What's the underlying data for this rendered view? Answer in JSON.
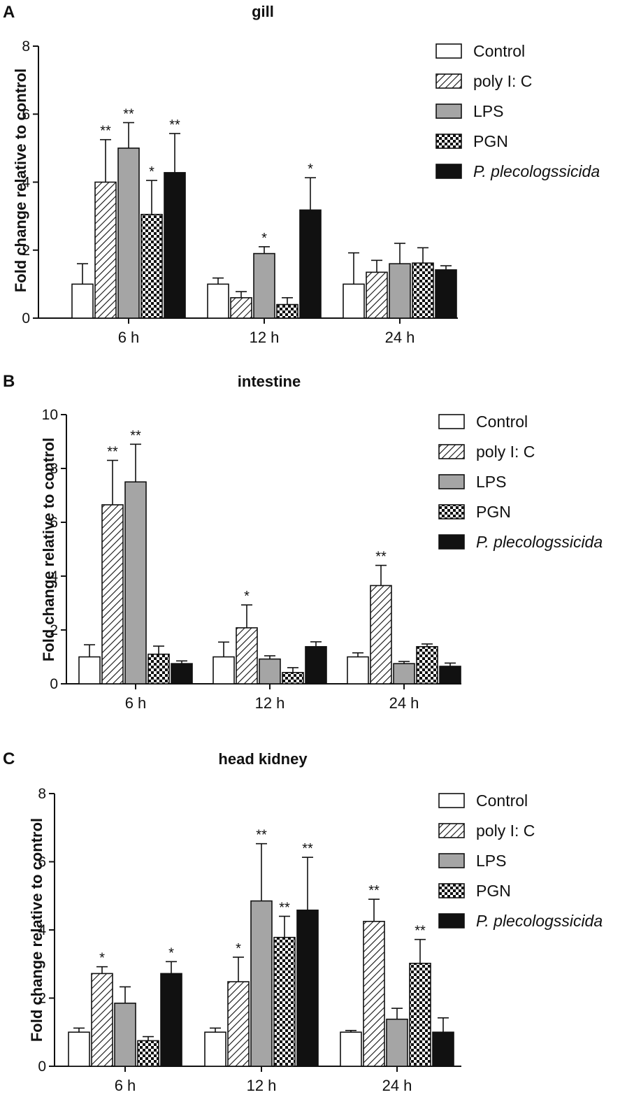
{
  "legend": {
    "entries": [
      {
        "name": "Control",
        "pattern": "white",
        "italic": false
      },
      {
        "name": "poly I: C",
        "pattern": "hatch",
        "italic": false
      },
      {
        "name": "LPS",
        "pattern": "gray",
        "italic": false
      },
      {
        "name": "PGN",
        "pattern": "checker",
        "italic": false
      },
      {
        "name": "P. plecologssicida",
        "pattern": "black",
        "italic": true
      }
    ]
  },
  "colors": {
    "gray": "#a5a5a5",
    "black": "#111111",
    "white": "#ffffff"
  },
  "chart_data": [
    {
      "letter": "A",
      "title": "gill",
      "type": "bar",
      "ylabel": "Fold change relative to control",
      "ylim": [
        0,
        8
      ],
      "yticks": [
        0,
        2,
        4,
        6,
        8
      ],
      "categories": [
        "6 h",
        "12 h",
        "24 h"
      ],
      "series": [
        {
          "name": "Control",
          "values": [
            1.0,
            1.0,
            1.0
          ],
          "errors": [
            0.6,
            0.18,
            0.92
          ],
          "stars": [
            "",
            "",
            ""
          ]
        },
        {
          "name": "poly I: C",
          "values": [
            4.0,
            0.6,
            1.35
          ],
          "errors": [
            1.25,
            0.18,
            0.35
          ],
          "stars": [
            "**",
            "",
            ""
          ]
        },
        {
          "name": "LPS",
          "values": [
            5.0,
            1.9,
            1.6
          ],
          "errors": [
            0.75,
            0.2,
            0.6
          ],
          "stars": [
            "**",
            "*",
            ""
          ]
        },
        {
          "name": "PGN",
          "values": [
            3.05,
            0.4,
            1.62
          ],
          "errors": [
            1.0,
            0.2,
            0.45
          ],
          "stars": [
            "*",
            "",
            ""
          ]
        },
        {
          "name": "P. plecologssicida",
          "values": [
            4.28,
            3.18,
            1.42
          ],
          "errors": [
            1.15,
            0.95,
            0.12
          ],
          "stars": [
            "**",
            "*",
            ""
          ]
        }
      ]
    },
    {
      "letter": "B",
      "title": "intestine",
      "type": "bar",
      "ylabel": "Fold change relative to control",
      "ylim": [
        0,
        10
      ],
      "yticks": [
        0,
        2,
        4,
        6,
        8,
        10
      ],
      "categories": [
        "6 h",
        "12 h",
        "24 h"
      ],
      "series": [
        {
          "name": "Control",
          "values": [
            1.0,
            1.0,
            1.0
          ],
          "errors": [
            0.45,
            0.55,
            0.15
          ],
          "stars": [
            "",
            "",
            ""
          ]
        },
        {
          "name": "poly I: C",
          "values": [
            6.65,
            2.08,
            3.65
          ],
          "errors": [
            1.65,
            0.85,
            0.75
          ],
          "stars": [
            "**",
            "*",
            "**"
          ]
        },
        {
          "name": "LPS",
          "values": [
            7.5,
            0.92,
            0.75
          ],
          "errors": [
            1.4,
            0.12,
            0.08
          ],
          "stars": [
            "**",
            "",
            ""
          ]
        },
        {
          "name": "PGN",
          "values": [
            1.1,
            0.42,
            1.38
          ],
          "errors": [
            0.3,
            0.18,
            0.1
          ],
          "stars": [
            "",
            "",
            ""
          ]
        },
        {
          "name": "P. plecologssicida",
          "values": [
            0.75,
            1.38,
            0.65
          ],
          "errors": [
            0.1,
            0.18,
            0.12
          ],
          "stars": [
            "",
            "",
            ""
          ]
        }
      ]
    },
    {
      "letter": "C",
      "title": "head kidney",
      "type": "bar",
      "ylabel": "Fold change relative to control",
      "ylim": [
        0,
        8
      ],
      "yticks": [
        0,
        2,
        4,
        6,
        8
      ],
      "categories": [
        "6 h",
        "12 h",
        "24 h"
      ],
      "series": [
        {
          "name": "Control",
          "values": [
            1.0,
            1.0,
            1.0
          ],
          "errors": [
            0.12,
            0.12,
            0.05
          ],
          "stars": [
            "",
            "",
            ""
          ]
        },
        {
          "name": "poly I: C",
          "values": [
            2.72,
            2.48,
            4.25
          ],
          "errors": [
            0.2,
            0.72,
            0.65
          ],
          "stars": [
            "*",
            "*",
            "**"
          ]
        },
        {
          "name": "LPS",
          "values": [
            1.85,
            4.85,
            1.38
          ],
          "errors": [
            0.48,
            1.68,
            0.32
          ],
          "stars": [
            "",
            "**",
            ""
          ]
        },
        {
          "name": "PGN",
          "values": [
            0.75,
            3.78,
            3.02
          ],
          "errors": [
            0.12,
            0.62,
            0.7
          ],
          "stars": [
            "",
            "**",
            "**"
          ]
        },
        {
          "name": "P. plecologssicida",
          "values": [
            2.72,
            4.58,
            1.0
          ],
          "errors": [
            0.35,
            1.55,
            0.42
          ],
          "stars": [
            "*",
            "**",
            ""
          ]
        }
      ]
    }
  ]
}
